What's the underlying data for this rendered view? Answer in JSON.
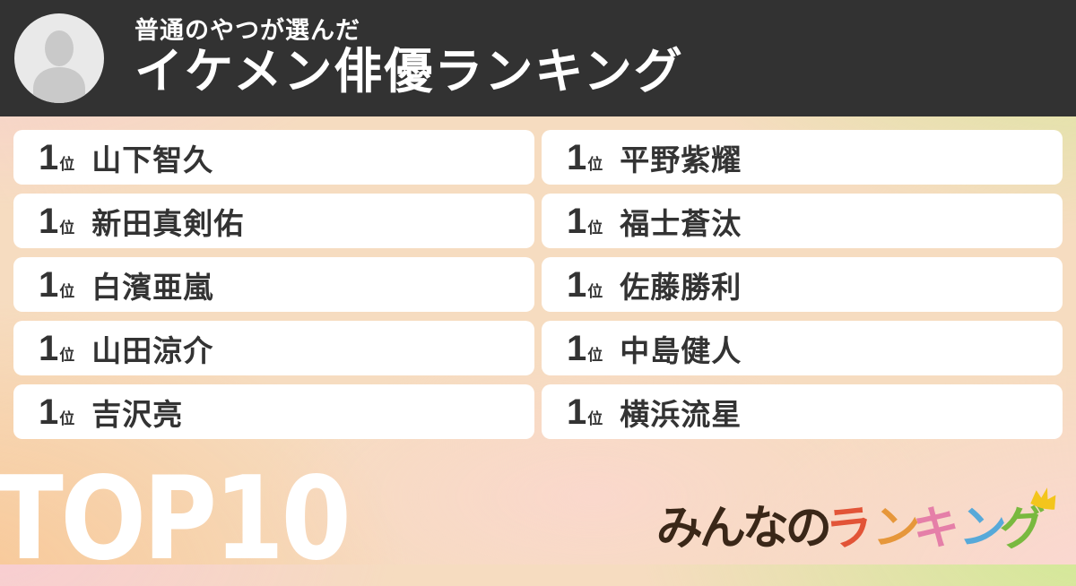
{
  "header": {
    "subtitle": "普通のやつが選んだ",
    "title": "イケメン俳優ランキング",
    "avatar_icon": "person-placeholder-icon"
  },
  "ranking": {
    "items": [
      {
        "rank": "1",
        "unit": "位",
        "name": "山下智久"
      },
      {
        "rank": "1",
        "unit": "位",
        "name": "新田真剣佑"
      },
      {
        "rank": "1",
        "unit": "位",
        "name": "白濱亜嵐"
      },
      {
        "rank": "1",
        "unit": "位",
        "name": "山田涼介"
      },
      {
        "rank": "1",
        "unit": "位",
        "name": "吉沢亮"
      },
      {
        "rank": "1",
        "unit": "位",
        "name": "平野紫耀"
      },
      {
        "rank": "1",
        "unit": "位",
        "name": "福士蒼汰"
      },
      {
        "rank": "1",
        "unit": "位",
        "name": "佐藤勝利"
      },
      {
        "rank": "1",
        "unit": "位",
        "name": "中島健人"
      },
      {
        "rank": "1",
        "unit": "位",
        "name": "横浜流星"
      }
    ]
  },
  "footer": {
    "top_label": "TOP10",
    "logo": {
      "text": "みんなのランキング",
      "chars": [
        {
          "ch": "み",
          "color": "#3a2718",
          "rotate": 0
        },
        {
          "ch": "ん",
          "color": "#3a2718",
          "rotate": 0
        },
        {
          "ch": "な",
          "color": "#3a2718",
          "rotate": 0
        },
        {
          "ch": "の",
          "color": "#3a2718",
          "rotate": 0
        },
        {
          "ch": "ラ",
          "color": "#e25437",
          "rotate": -6
        },
        {
          "ch": "ン",
          "color": "#e6973b",
          "rotate": 4
        },
        {
          "ch": "キ",
          "color": "#e57fa8",
          "rotate": -4
        },
        {
          "ch": "ン",
          "color": "#57a9d9",
          "rotate": 5
        },
        {
          "ch": "グ",
          "color": "#79b93f",
          "rotate": -3
        }
      ],
      "crown_icon": "crown-icon",
      "crown_color": "#f3c51c"
    }
  },
  "colors": {
    "header_bg": "#323232",
    "card_bg": "#ffffff",
    "text_dark": "#333333",
    "top10_text": "#ffffff",
    "bg_top_left": "#f8ccd3",
    "bg_top_right": "#cfea93",
    "bg_bottom_left": "#f8c897",
    "bg_bottom_right": "#fbd7d3"
  }
}
